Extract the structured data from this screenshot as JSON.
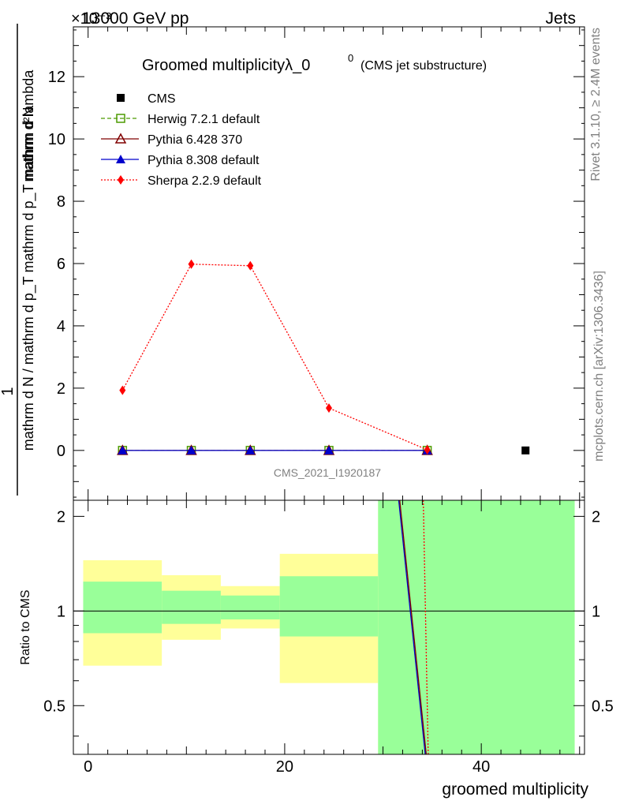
{
  "header": {
    "left_label": "13000 GeV pp",
    "right_label": "Jets",
    "exponent_label": "×10⁻³"
  },
  "side_labels": {
    "rivet": "Rivet 3.1.10, ≥ 2.4M events",
    "mcplots": "mcplots.cern.ch [arXiv:1306.3436]"
  },
  "chart_data": [
    {
      "type": "line",
      "title": "Groomed multiplicityλ_0",
      "title_superscript": "0",
      "subtitle": "(CMS jet substructure)",
      "watermark": "CMS_2021_I1920187",
      "ylabel_numerator": "1",
      "ylabel_numerator_right": "mathrm d²N",
      "ylabel_denominator": "mathrm d N / mathrm d p_T mathrm d p_T mathrm d lambda",
      "y_scale_factor": 0.001,
      "xlim": [
        -1.5,
        50.5
      ],
      "ylim": [
        -1.6,
        13.6
      ],
      "y_ticks": [
        0,
        2,
        4,
        6,
        8,
        10,
        12
      ],
      "x_ticks": [
        0,
        20,
        40
      ],
      "legend_position": "top-left",
      "series": [
        {
          "name": "CMS",
          "color": "#000000",
          "marker": "filled-square",
          "line": "none",
          "x": [
            44.5
          ],
          "y": [
            0
          ]
        },
        {
          "name": "Herwig 7.2.1 default",
          "color": "#4c9a00",
          "marker": "open-square",
          "line": "dashed",
          "x": [
            3.5,
            10.5,
            16.5,
            24.5,
            34.5
          ],
          "y": [
            0,
            0,
            0,
            0,
            0
          ]
        },
        {
          "name": "Pythia 6.428 370",
          "color": "#800000",
          "marker": "open-triangle",
          "line": "solid",
          "x": [
            3.5,
            10.5,
            16.5,
            24.5,
            34.5
          ],
          "y": [
            0,
            0,
            0,
            0,
            0
          ]
        },
        {
          "name": "Pythia 8.308 default",
          "color": "#0000cc",
          "marker": "filled-triangle",
          "line": "solid",
          "x": [
            3.5,
            10.5,
            16.5,
            24.5,
            34.5
          ],
          "y": [
            0,
            0,
            0,
            0,
            0
          ]
        },
        {
          "name": "Sherpa 2.2.9 default",
          "color": "#ff0000",
          "marker": "diamond",
          "line": "dotted",
          "x": [
            3.5,
            10.5,
            16.5,
            24.5,
            34.5
          ],
          "y": [
            1.93,
            5.98,
            5.93,
            1.36,
            0.02
          ]
        }
      ]
    },
    {
      "type": "area",
      "ylabel": "Ratio to CMS",
      "xlabel": "groomed multiplicity",
      "xlim": [
        -1.5,
        50.5
      ],
      "ylim": [
        0.35,
        2.25
      ],
      "y_ticks": [
        0.5,
        1,
        2
      ],
      "x_ticks": [
        0,
        20,
        40
      ],
      "reference_line": 1,
      "bands": [
        {
          "x": [
            -0.5,
            7.5
          ],
          "yellow": [
            0.67,
            1.45
          ],
          "green": [
            0.85,
            1.24
          ]
        },
        {
          "x": [
            7.5,
            13.5
          ],
          "yellow": [
            0.81,
            1.3
          ],
          "green": [
            0.91,
            1.16
          ]
        },
        {
          "x": [
            13.5,
            19.5
          ],
          "yellow": [
            0.88,
            1.2
          ],
          "green": [
            0.94,
            1.12
          ]
        },
        {
          "x": [
            19.5,
            29.5
          ],
          "yellow": [
            0.59,
            1.52
          ],
          "green": [
            0.83,
            1.29
          ]
        },
        {
          "x": [
            29.5,
            49.5
          ],
          "yellow": [
            0.35,
            2.25
          ],
          "green": [
            0.35,
            2.25
          ]
        }
      ],
      "ratio_lines": [
        {
          "name": "Pythia 8.308 default",
          "color": "#0000cc",
          "line": "solid",
          "x": [
            31.6,
            34.3
          ],
          "y": [
            2.25,
            0.35
          ]
        },
        {
          "name": "Pythia 6.428 370",
          "color": "#800000",
          "line": "solid",
          "x": [
            31.7,
            34.4
          ],
          "y": [
            2.25,
            0.35
          ]
        },
        {
          "name": "Sherpa 2.2.9 default",
          "color": "#ff0000",
          "line": "dotted",
          "x": [
            34.1,
            34.6
          ],
          "y": [
            2.25,
            0.35
          ]
        }
      ]
    }
  ]
}
